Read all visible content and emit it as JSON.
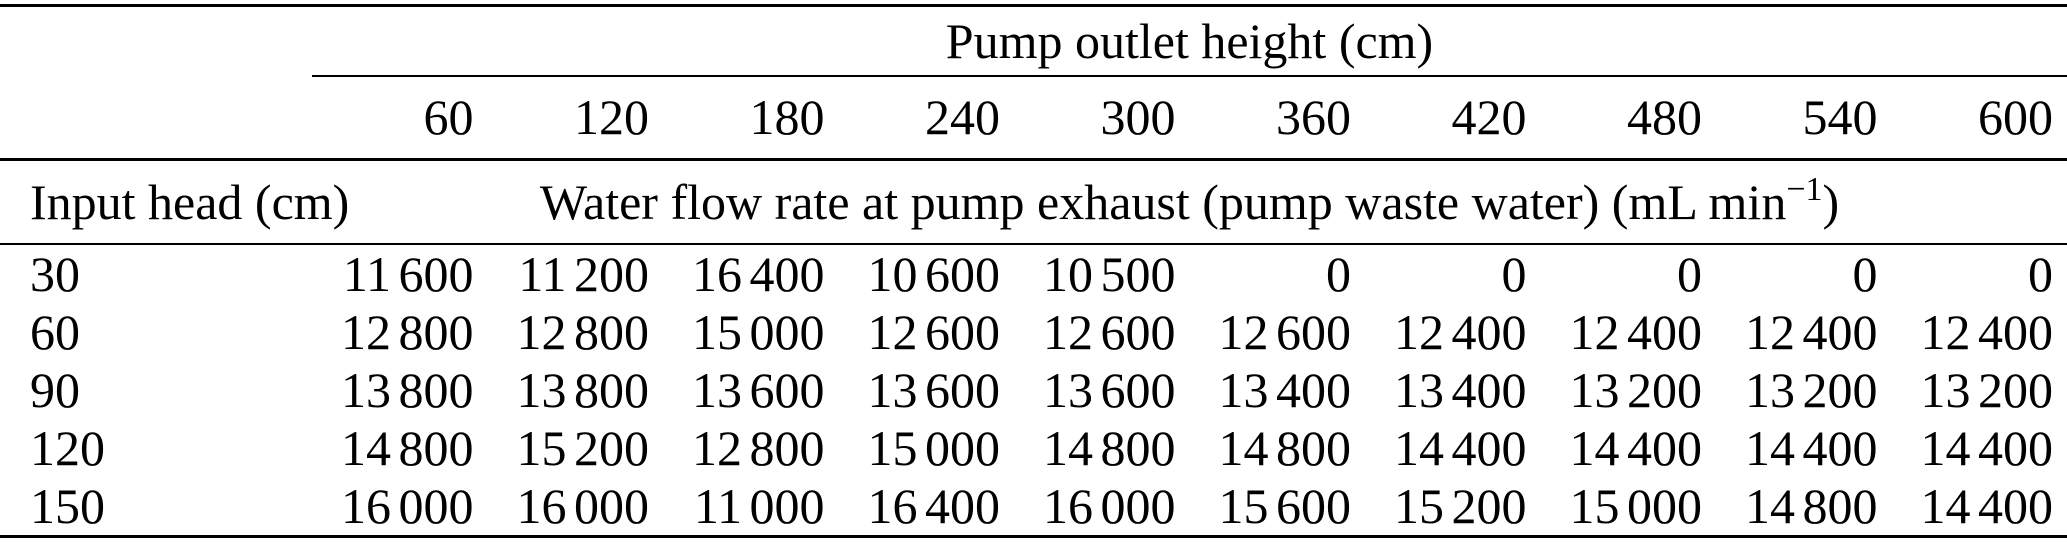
{
  "table": {
    "col_group_header": "Pump outlet height (cm)",
    "row_group_header": "Input head (cm)",
    "value_header": {
      "pre": "Water flow rate at pump exhaust (pump waste water) (mL min",
      "sup": "−1",
      "post": ")"
    },
    "columns": [
      "60",
      "120",
      "180",
      "240",
      "300",
      "360",
      "420",
      "480",
      "540",
      "600"
    ],
    "rows": [
      {
        "label": "30",
        "values": [
          "11 600",
          "11 200",
          "16 400",
          "10 600",
          "10 500",
          "0",
          "0",
          "0",
          "0",
          "0"
        ]
      },
      {
        "label": "60",
        "values": [
          "12 800",
          "12 800",
          "15 000",
          "12 600",
          "12 600",
          "12 600",
          "12 400",
          "12 400",
          "12 400",
          "12 400"
        ]
      },
      {
        "label": "90",
        "values": [
          "13 800",
          "13 800",
          "13 600",
          "13 600",
          "13 600",
          "13 400",
          "13 400",
          "13 200",
          "13 200",
          "13 200"
        ]
      },
      {
        "label": "120",
        "values": [
          "14 800",
          "15 200",
          "12 800",
          "15 000",
          "14 800",
          "14 800",
          "14 400",
          "14 400",
          "14 400",
          "14 400"
        ]
      },
      {
        "label": "150",
        "values": [
          "16 000",
          "16 000",
          "11 000",
          "16 400",
          "16 000",
          "15 600",
          "15 200",
          "15 000",
          "14 800",
          "14 400"
        ]
      }
    ]
  },
  "colors": {
    "text": "#000000",
    "background": "#ffffff",
    "rule": "#000000"
  }
}
